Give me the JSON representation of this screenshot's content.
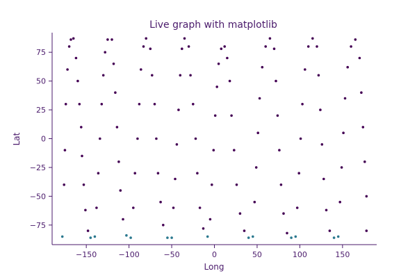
{
  "chart_data": {
    "type": "scatter",
    "title": "Live graph with matplotlib",
    "xlabel": "Long",
    "ylabel": "Lat",
    "xlim": [
      -190,
      190
    ],
    "ylim": [
      -92,
      92
    ],
    "xticks": [
      -150,
      -100,
      -50,
      0,
      50,
      100,
      150
    ],
    "yticks": [
      -75,
      -50,
      -25,
      0,
      25,
      50,
      75
    ],
    "xtick_labels": [
      "−150",
      "−100",
      "−50",
      "0",
      "50",
      "100",
      "150"
    ],
    "ytick_labels": [
      "−75",
      "−50",
      "−25",
      "0",
      "25",
      "50",
      "75"
    ],
    "grid": false,
    "colors": {
      "points": "#440154",
      "highlight": "#2a788e",
      "text": "#4a1a6b"
    },
    "series": [
      {
        "values": [
          [
            -178,
            -85
          ],
          [
            -176,
            -40
          ],
          [
            -175,
            -10
          ],
          [
            -174,
            30
          ],
          [
            -172,
            60
          ],
          [
            -170,
            80
          ],
          [
            -168,
            86
          ],
          [
            -165,
            87
          ],
          [
            -162,
            70
          ],
          [
            -160,
            50
          ],
          [
            -158,
            30
          ],
          [
            -156,
            10
          ],
          [
            -155,
            -15
          ],
          [
            -153,
            -40
          ],
          [
            -151,
            -62
          ],
          [
            -148,
            -80
          ],
          [
            -145,
            -86
          ],
          [
            -140,
            -85
          ],
          [
            -138,
            -60
          ],
          [
            -136,
            -30
          ],
          [
            -134,
            0
          ],
          [
            -132,
            30
          ],
          [
            -130,
            55
          ],
          [
            -128,
            75
          ],
          [
            -125,
            86
          ],
          [
            -120,
            86
          ],
          [
            -118,
            65
          ],
          [
            -116,
            40
          ],
          [
            -114,
            10
          ],
          [
            -112,
            -20
          ],
          [
            -110,
            -45
          ],
          [
            -107,
            -70
          ],
          [
            -103,
            -84
          ],
          [
            -98,
            -86
          ],
          [
            -95,
            -60
          ],
          [
            -93,
            -30
          ],
          [
            -90,
            0
          ],
          [
            -88,
            30
          ],
          [
            -86,
            60
          ],
          [
            -83,
            80
          ],
          [
            -80,
            87
          ],
          [
            -75,
            78
          ],
          [
            -73,
            55
          ],
          [
            -70,
            30
          ],
          [
            -68,
            0
          ],
          [
            -66,
            -30
          ],
          [
            -63,
            -55
          ],
          [
            -60,
            -75
          ],
          [
            -55,
            -86
          ],
          [
            -50,
            -86
          ],
          [
            -48,
            -60
          ],
          [
            -46,
            -35
          ],
          [
            -44,
            -5
          ],
          [
            -42,
            25
          ],
          [
            -40,
            55
          ],
          [
            -38,
            78
          ],
          [
            -35,
            87
          ],
          [
            -30,
            80
          ],
          [
            -28,
            55
          ],
          [
            -25,
            30
          ],
          [
            -22,
            0
          ],
          [
            -20,
            -30
          ],
          [
            -17,
            -60
          ],
          [
            -13,
            -78
          ],
          [
            -8,
            -85
          ],
          [
            -5,
            -70
          ],
          [
            -3,
            -40
          ],
          [
            -1,
            -10
          ],
          [
            1,
            20
          ],
          [
            3,
            45
          ],
          [
            5,
            65
          ],
          [
            8,
            78
          ],
          [
            12,
            80
          ],
          [
            15,
            70
          ],
          [
            18,
            50
          ],
          [
            20,
            20
          ],
          [
            23,
            -10
          ],
          [
            26,
            -40
          ],
          [
            30,
            -65
          ],
          [
            35,
            -80
          ],
          [
            40,
            -86
          ],
          [
            45,
            -85
          ],
          [
            47,
            -55
          ],
          [
            49,
            -25
          ],
          [
            51,
            5
          ],
          [
            53,
            35
          ],
          [
            56,
            62
          ],
          [
            60,
            80
          ],
          [
            65,
            87
          ],
          [
            70,
            78
          ],
          [
            72,
            50
          ],
          [
            74,
            20
          ],
          [
            76,
            -10
          ],
          [
            78,
            -40
          ],
          [
            81,
            -65
          ],
          [
            85,
            -82
          ],
          [
            90,
            -86
          ],
          [
            95,
            -85
          ],
          [
            97,
            -60
          ],
          [
            99,
            -30
          ],
          [
            101,
            0
          ],
          [
            103,
            30
          ],
          [
            106,
            60
          ],
          [
            110,
            80
          ],
          [
            115,
            87
          ],
          [
            120,
            80
          ],
          [
            122,
            55
          ],
          [
            124,
            25
          ],
          [
            126,
            -5
          ],
          [
            128,
            -35
          ],
          [
            131,
            -62
          ],
          [
            135,
            -80
          ],
          [
            140,
            -86
          ],
          [
            145,
            -85
          ],
          [
            147,
            -55
          ],
          [
            149,
            -25
          ],
          [
            151,
            5
          ],
          [
            153,
            35
          ],
          [
            156,
            62
          ],
          [
            160,
            80
          ],
          [
            165,
            86
          ],
          [
            170,
            70
          ],
          [
            172,
            40
          ],
          [
            174,
            10
          ],
          [
            176,
            -20
          ],
          [
            178,
            -50
          ],
          [
            178,
            -80
          ]
        ]
      }
    ]
  }
}
